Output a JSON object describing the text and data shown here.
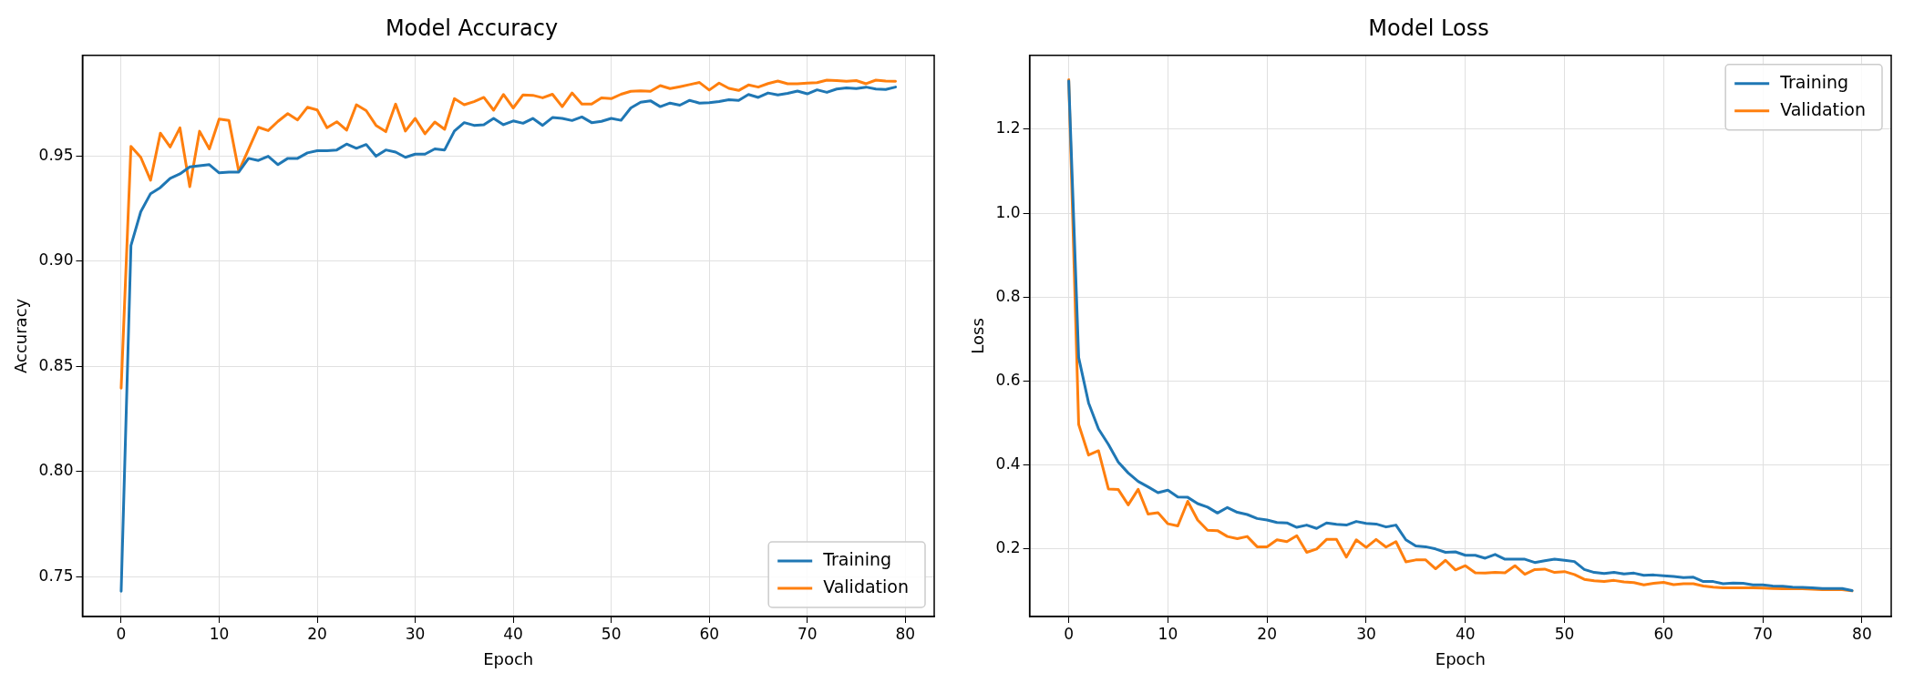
{
  "chart_data": [
    {
      "type": "line",
      "title": "Model Accuracy",
      "xlabel": "Epoch",
      "ylabel": "Accuracy",
      "legend": "bottom right",
      "grid": true,
      "marker": "none",
      "xlim": [
        -3.95,
        82.95
      ],
      "xticks": [
        0,
        10,
        20,
        30,
        40,
        50,
        60,
        70,
        80
      ],
      "ylim": [
        0.731,
        0.998
      ],
      "yticks": [
        0.75,
        {
          "value": 0.8,
          "label": "0.80"
        },
        0.85,
        {
          "value": 0.9,
          "label": "0.90"
        },
        0.95
      ],
      "x": [
        0,
        1,
        2,
        3,
        4,
        5,
        6,
        7,
        8,
        9,
        10,
        11,
        12,
        13,
        14,
        15,
        16,
        17,
        18,
        19,
        20,
        21,
        22,
        23,
        24,
        25,
        26,
        27,
        28,
        29,
        30,
        31,
        32,
        33,
        34,
        35,
        36,
        37,
        38,
        39,
        40,
        41,
        42,
        43,
        44,
        45,
        46,
        47,
        48,
        49,
        50,
        51,
        52,
        53,
        54,
        55,
        56,
        57,
        58,
        59,
        60,
        61,
        62,
        63,
        64,
        65,
        66,
        67,
        68,
        69,
        70,
        71,
        72,
        73,
        74,
        75,
        76,
        77,
        78,
        79
      ],
      "series": [
        {
          "name": "Training",
          "color": "#1f77b4",
          "values": [
            0.743,
            0.9075,
            0.9236,
            0.9322,
            0.9351,
            0.9395,
            0.9416,
            0.9449,
            0.9455,
            0.946,
            0.9421,
            0.9425,
            0.9425,
            0.949,
            0.948,
            0.95,
            0.946,
            0.949,
            0.949,
            0.9516,
            0.9526,
            0.9526,
            0.953,
            0.9558,
            0.9538,
            0.9556,
            0.95,
            0.953,
            0.952,
            0.9495,
            0.951,
            0.951,
            0.9535,
            0.953,
            0.962,
            0.966,
            0.9647,
            0.965,
            0.968,
            0.965,
            0.9668,
            0.9657,
            0.968,
            0.9647,
            0.9684,
            0.968,
            0.967,
            0.9687,
            0.966,
            0.9666,
            0.968,
            0.9671,
            0.973,
            0.9757,
            0.9764,
            0.9736,
            0.9753,
            0.9743,
            0.9766,
            0.9753,
            0.9755,
            0.976,
            0.9769,
            0.9766,
            0.9794,
            0.978,
            0.9801,
            0.9792,
            0.9799,
            0.981,
            0.9797,
            0.9816,
            0.9804,
            0.982,
            0.9825,
            0.9822,
            0.9829,
            0.982,
            0.9818,
            0.9829
          ]
        },
        {
          "name": "Validation",
          "color": "#ff7f0e",
          "values": [
            0.8397,
            0.9547,
            0.9495,
            0.9386,
            0.961,
            0.9544,
            0.9635,
            0.9355,
            0.9619,
            0.9535,
            0.9677,
            0.967,
            0.9428,
            0.9533,
            0.9638,
            0.9622,
            0.9666,
            0.9703,
            0.9673,
            0.9733,
            0.972,
            0.9636,
            0.9664,
            0.9624,
            0.9745,
            0.9717,
            0.9647,
            0.9617,
            0.9748,
            0.962,
            0.968,
            0.9607,
            0.9663,
            0.9628,
            0.9774,
            0.9745,
            0.976,
            0.978,
            0.9719,
            0.9794,
            0.973,
            0.9792,
            0.979,
            0.9778,
            0.9795,
            0.9736,
            0.9801,
            0.9748,
            0.9748,
            0.9778,
            0.9774,
            0.9795,
            0.9809,
            0.9811,
            0.9809,
            0.9836,
            0.9822,
            0.9831,
            0.9841,
            0.9851,
            0.9815,
            0.9848,
            0.9823,
            0.9813,
            0.9839,
            0.9829,
            0.9846,
            0.9858,
            0.9845,
            0.9845,
            0.9848,
            0.985,
            0.9862,
            0.986,
            0.9857,
            0.986,
            0.9845,
            0.9862,
            0.9858,
            0.9857
          ]
        }
      ]
    },
    {
      "type": "line",
      "title": "Model Loss",
      "xlabel": "Epoch",
      "ylabel": "Loss",
      "legend": "top right",
      "grid": true,
      "marker": "none",
      "xlim": [
        -3.95,
        82.95
      ],
      "xticks": [
        0,
        10,
        20,
        30,
        40,
        50,
        60,
        70,
        80
      ],
      "ylim": [
        0.039,
        1.376
      ],
      "yticks": [
        0.2,
        0.4,
        0.6,
        0.8,
        {
          "value": 1,
          "label": "1.0"
        },
        1.2
      ],
      "x": [
        0,
        1,
        2,
        3,
        4,
        5,
        6,
        7,
        8,
        9,
        10,
        11,
        12,
        13,
        14,
        15,
        16,
        17,
        18,
        19,
        20,
        21,
        22,
        23,
        24,
        25,
        26,
        27,
        28,
        29,
        30,
        31,
        32,
        33,
        34,
        35,
        36,
        37,
        38,
        39,
        40,
        41,
        42,
        43,
        44,
        45,
        46,
        47,
        48,
        49,
        50,
        51,
        52,
        53,
        54,
        55,
        56,
        57,
        58,
        59,
        60,
        61,
        62,
        63,
        64,
        65,
        66,
        67,
        68,
        69,
        70,
        71,
        72,
        73,
        74,
        75,
        76,
        77,
        78,
        79
      ],
      "series": [
        {
          "name": "Training",
          "color": "#1f77b4",
          "values": [
            1.315,
            0.656,
            0.548,
            0.486,
            0.449,
            0.407,
            0.381,
            0.361,
            0.348,
            0.334,
            0.34,
            0.324,
            0.323,
            0.308,
            0.2996,
            0.2856,
            0.2987,
            0.2873,
            0.282,
            0.2725,
            0.269,
            0.263,
            0.262,
            0.2515,
            0.2568,
            0.249,
            0.262,
            0.2585,
            0.2568,
            0.2655,
            0.261,
            0.2594,
            0.2524,
            0.2568,
            0.2218,
            0.207,
            0.2052,
            0.2,
            0.192,
            0.193,
            0.185,
            0.185,
            0.178,
            0.187,
            0.1755,
            0.1755,
            0.1755,
            0.1677,
            0.172,
            0.1755,
            0.173,
            0.17,
            0.151,
            0.144,
            0.1415,
            0.144,
            0.1406,
            0.1424,
            0.137,
            0.138,
            0.136,
            0.1345,
            0.132,
            0.1327,
            0.1223,
            0.1223,
            0.117,
            0.1188,
            0.118,
            0.1144,
            0.1144,
            0.1118,
            0.111,
            0.109,
            0.1083,
            0.1074,
            0.1057,
            0.1057,
            0.1057,
            0.101
          ]
        },
        {
          "name": "Validation",
          "color": "#ff7f0e",
          "values": [
            1.318,
            0.497,
            0.4236,
            0.434,
            0.343,
            0.3415,
            0.305,
            0.342,
            0.283,
            0.2865,
            0.26,
            0.255,
            0.3135,
            0.269,
            0.2445,
            0.2437,
            0.2297,
            0.2245,
            0.2297,
            0.2052,
            0.2052,
            0.2218,
            0.2175,
            0.2314,
            0.192,
            0.2,
            0.2227,
            0.2227,
            0.1808,
            0.2218,
            0.2035,
            0.2227,
            0.2044,
            0.2175,
            0.1694,
            0.1738,
            0.1738,
            0.1528,
            0.173,
            0.15,
            0.16,
            0.1432,
            0.1424,
            0.144,
            0.1432,
            0.16,
            0.1397,
            0.151,
            0.152,
            0.144,
            0.146,
            0.139,
            0.1275,
            0.124,
            0.1223,
            0.125,
            0.1214,
            0.1197,
            0.1144,
            0.118,
            0.1205,
            0.115,
            0.117,
            0.117,
            0.1118,
            0.109,
            0.1074,
            0.1074,
            0.1074,
            0.1074,
            0.1066,
            0.1057,
            0.105,
            0.1057,
            0.105,
            0.104,
            0.103,
            0.103,
            0.103,
            0.1
          ]
        }
      ]
    }
  ]
}
